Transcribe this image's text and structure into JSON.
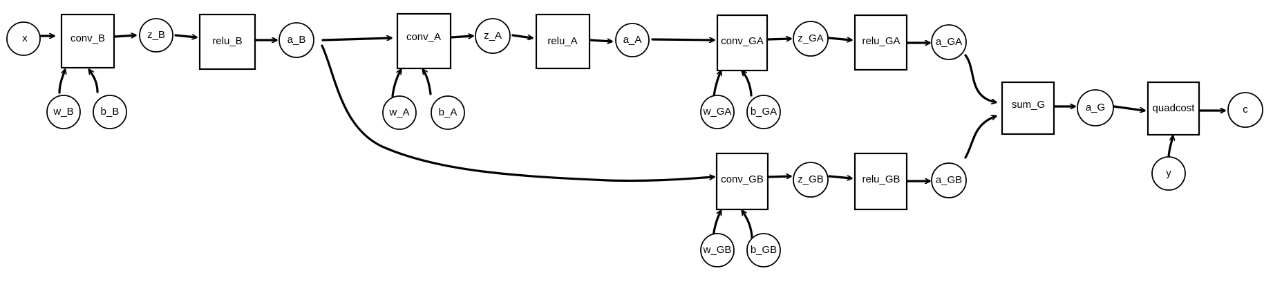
{
  "nodes": {
    "x": "x",
    "conv_B": "conv_B",
    "z_B": "z_B",
    "relu_B": "relu_B",
    "a_B": "a_B",
    "w_B": "w_B",
    "b_B": "b_B",
    "conv_A": "conv_A",
    "z_A": "z_A",
    "relu_A": "relu_A",
    "a_A": "a_A",
    "w_A": "w_A",
    "b_A": "b_A",
    "conv_GA": "conv_GA",
    "z_GA": "z_GA",
    "relu_GA": "relu_GA",
    "a_GA": "a_GA",
    "w_GA": "w_GA",
    "b_GA": "b_GA",
    "conv_GB": "conv_GB",
    "z_GB": "z_GB",
    "relu_GB": "relu_GB",
    "a_GB": "a_GB",
    "w_GB": "w_GB",
    "b_GB": "b_GB",
    "sum_G": "sum_G",
    "a_G": "a_G",
    "quadcost": "quadcost",
    "y": "y",
    "c": "c"
  }
}
